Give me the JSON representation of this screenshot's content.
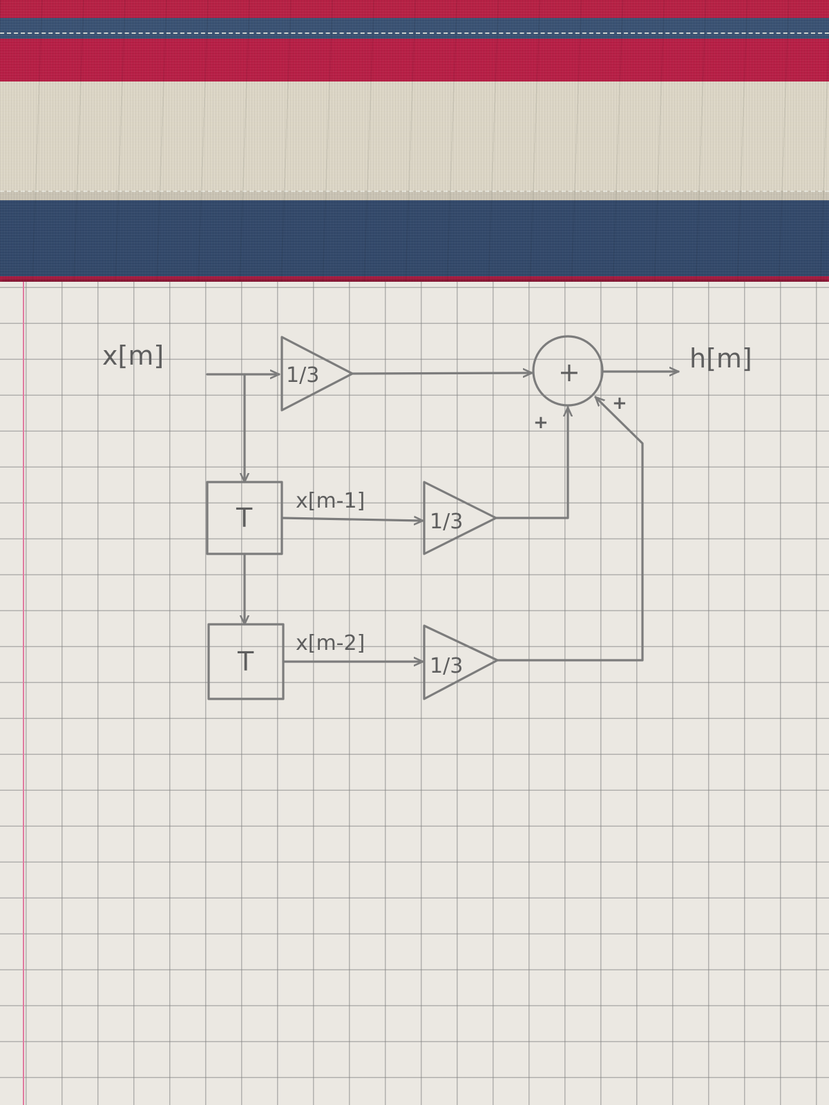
{
  "diagram": {
    "input_label": "x[m]",
    "output_label": "h[m]",
    "delay_symbol": "T",
    "adder_symbol": "+",
    "delay_outputs": [
      "x[m-1]",
      "x[m-2]"
    ],
    "gains": [
      "1/3",
      "1/3",
      "1/3"
    ],
    "adder_input_signs": [
      "+",
      "+"
    ]
  },
  "colors": {
    "fabric_red": "#b21f45",
    "fabric_navy": "#35506f",
    "fabric_cream": "#ddd7c6",
    "paper": "#ebe8e2",
    "grid": "#8a8a8a",
    "margin_line": "#e07aa0",
    "pencil": "#7c7c7c"
  }
}
